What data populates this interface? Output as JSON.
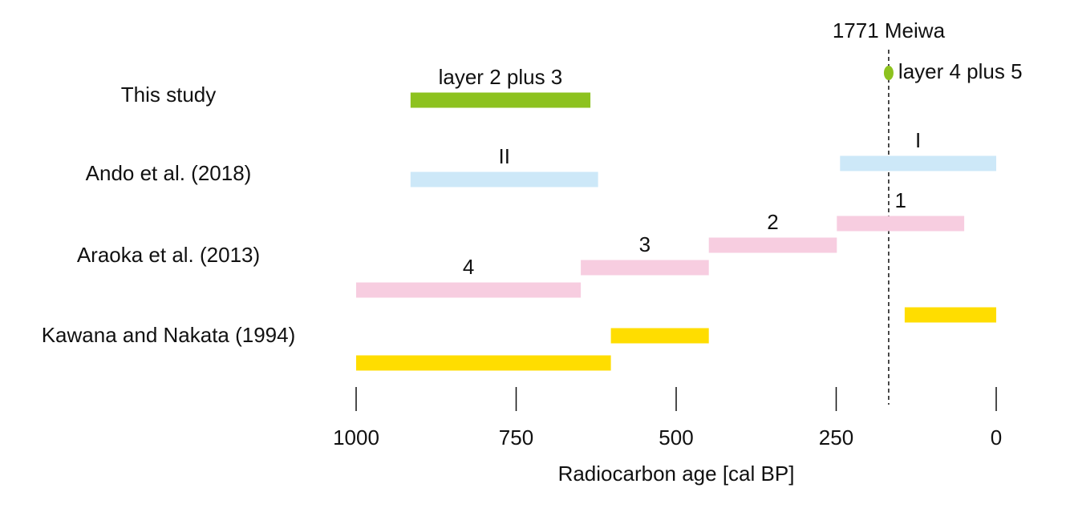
{
  "chart_data": {
    "type": "range-bar",
    "x_label": "Radiocarbon age [cal BP]",
    "xlim": [
      1000,
      0
    ],
    "xticks": [
      1000,
      750,
      500,
      250,
      0
    ],
    "reference_line": {
      "label": "1771 Meiwa",
      "value": 168
    },
    "groups": [
      {
        "name": "This study",
        "color": "#8dc21f",
        "bars": [
          {
            "label": "layer 2 plus 3",
            "values": [
              915,
              634
            ]
          }
        ],
        "points": [
          {
            "label": "layer 4 plus 5",
            "value": 168
          }
        ]
      },
      {
        "name": "Ando et al. (2018)",
        "color": "#cde8f8",
        "bars": [
          {
            "label": "I",
            "values": [
              244,
              0
            ]
          },
          {
            "label": "II",
            "values": [
              915,
              622
            ]
          }
        ]
      },
      {
        "name": "Araoka et al. (2013)",
        "color": "#f7cde0",
        "bars": [
          {
            "label": "1",
            "values": [
              249,
              50
            ]
          },
          {
            "label": "2",
            "values": [
              449,
              249
            ]
          },
          {
            "label": "3",
            "values": [
              649,
              449
            ]
          },
          {
            "label": "4",
            "values": [
              1000,
              649
            ]
          }
        ]
      },
      {
        "name": "Kawana and Nakata (1994)",
        "color": "#ffdd00",
        "bars": [
          {
            "values": [
              143,
              0
            ]
          },
          {
            "values": [
              602,
              449
            ]
          },
          {
            "values": [
              1000,
              602
            ]
          }
        ]
      }
    ]
  }
}
